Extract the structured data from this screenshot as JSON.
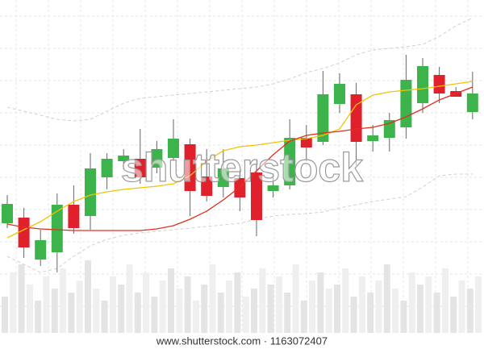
{
  "chart_data": {
    "type": "candlestick",
    "open": [
      156,
      163,
      111,
      120,
      179,
      165,
      213,
      233,
      236,
      225,
      237,
      254,
      214,
      201,
      212,
      219,
      196,
      203,
      262,
      257,
      304,
      316,
      258,
      262,
      275,
      305,
      340,
      320,
      294
    ],
    "high": [
      191,
      175,
      148,
      193,
      203,
      243,
      243,
      248,
      273,
      258,
      285,
      261,
      248,
      248,
      223,
      235,
      218,
      285,
      278,
      345,
      342,
      330,
      278,
      293,
      365,
      361,
      350,
      325,
      344
    ],
    "low": [
      150,
      113,
      103,
      95,
      143,
      148,
      198,
      223,
      205,
      218,
      233,
      165,
      183,
      188,
      171,
      140,
      188,
      198,
      233,
      253,
      293,
      228,
      245,
      245,
      261,
      293,
      305,
      313,
      285
    ],
    "close": [
      180,
      126,
      135,
      179,
      150,
      224,
      236,
      240,
      213,
      248,
      261,
      196,
      190,
      224,
      188,
      160,
      203,
      262,
      250,
      316,
      329,
      257,
      265,
      284,
      334,
      351,
      317,
      313,
      317
    ],
    "up_color": "#3cb44b",
    "down_color": "#e0202a",
    "ylim": [
      0,
      433
    ],
    "lines": [
      {
        "color": "#f2c400",
        "dash": false,
        "values": [
          138,
          148,
          158,
          171,
          183,
          191,
          195,
          198,
          200,
          202,
          205,
          215,
          233,
          246,
          251,
          253,
          256,
          259,
          261,
          265,
          273,
          303,
          315,
          319,
          321,
          323,
          326,
          329,
          332
        ]
      },
      {
        "color": "#e03020",
        "dash": false,
        "values": [
          155,
          151,
          149,
          148,
          147,
          147,
          147,
          147,
          147,
          149,
          153,
          161,
          171,
          185,
          201,
          221,
          241,
          258,
          265,
          268,
          270,
          273,
          275,
          280,
          288,
          298,
          309,
          317,
          325
        ]
      },
      {
        "color": "#d0d0d0",
        "dash": true,
        "values": [
          300,
          295,
          290,
          285,
          283,
          285,
          295,
          305,
          311,
          313,
          315,
          317,
          319,
          321,
          323,
          325,
          329,
          335,
          343,
          348,
          355,
          365,
          371,
          373,
          375,
          378,
          388,
          401,
          411
        ]
      },
      {
        "color": "#d0d0d0",
        "dash": true,
        "values": [
          115,
          105,
          95,
          100,
          115,
          128,
          136,
          141,
          144,
          146,
          148,
          150,
          152,
          154,
          156,
          161,
          165,
          167,
          168,
          170,
          175,
          179,
          183,
          186,
          189,
          201,
          215,
          217,
          217
        ]
      }
    ],
    "volume": {
      "colors": [
        "#e4e4e4",
        "#efefef"
      ],
      "ylim": [
        0,
        413
      ],
      "values": [
        45,
        75,
        85,
        60,
        40,
        70,
        55,
        80,
        50,
        65,
        90,
        55,
        40,
        70,
        60,
        85,
        50,
        75,
        45,
        65,
        80,
        55,
        70,
        40,
        60,
        85,
        50,
        65,
        75,
        45,
        55,
        80,
        60,
        70,
        50,
        85,
        40,
        65,
        75,
        55,
        60,
        80,
        45,
        70,
        50,
        65,
        85,
        55,
        40,
        75,
        60,
        70,
        50,
        80,
        45,
        65,
        55,
        70
      ]
    },
    "watermark": "shutterstock",
    "footer": "www.shutterstock.com · 1163072407"
  }
}
